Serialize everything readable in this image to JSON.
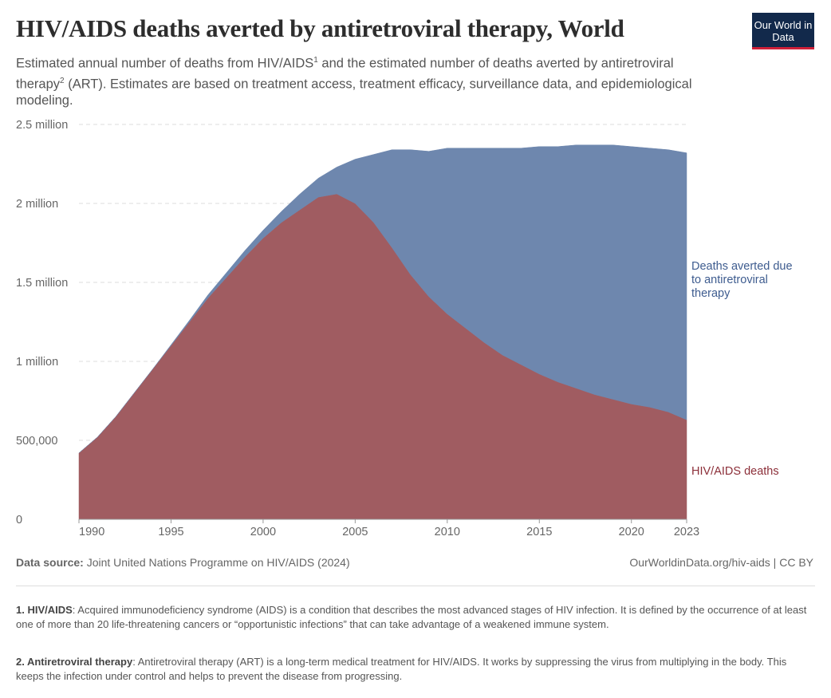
{
  "header": {
    "title": "HIV/AIDS deaths averted by antiretroviral therapy, World",
    "subtitle_part1": "Estimated annual number of deaths from HIV/AIDS",
    "subtitle_sup1": "1",
    "subtitle_part2": " and the estimated number of deaths averted by antiretroviral therapy",
    "subtitle_sup2": "2",
    "subtitle_part3": " (ART). Estimates are based on treatment access, treatment efficacy, surveillance data, and epidemiological modeling.",
    "logo": "Our World in Data"
  },
  "chart_data": {
    "type": "area",
    "stacked": true,
    "title": "HIV/AIDS deaths averted by antiretroviral therapy, World",
    "x": [
      1990,
      1991,
      1992,
      1993,
      1994,
      1995,
      1996,
      1997,
      1998,
      1999,
      2000,
      2001,
      2002,
      2003,
      2004,
      2005,
      2006,
      2007,
      2008,
      2009,
      2010,
      2011,
      2012,
      2013,
      2014,
      2015,
      2016,
      2017,
      2018,
      2019,
      2020,
      2021,
      2022,
      2023
    ],
    "series": [
      {
        "name": "HIV/AIDS deaths",
        "color": "#a05c61",
        "label_color": "#8c2f39",
        "values": [
          420000,
          520000,
          650000,
          800000,
          950000,
          1100000,
          1250000,
          1400000,
          1530000,
          1660000,
          1780000,
          1880000,
          1960000,
          2040000,
          2060000,
          2000000,
          1880000,
          1720000,
          1550000,
          1410000,
          1300000,
          1210000,
          1120000,
          1040000,
          980000,
          920000,
          870000,
          830000,
          790000,
          760000,
          730000,
          710000,
          680000,
          630000
        ]
      },
      {
        "name": "Deaths averted due to antiretroviral therapy",
        "color": "#6e87ae",
        "label_color": "#3e5c8f",
        "values": [
          0,
          0,
          0,
          0,
          0,
          5000,
          10000,
          20000,
          30000,
          40000,
          50000,
          70000,
          100000,
          120000,
          170000,
          280000,
          430000,
          620000,
          790000,
          920000,
          1050000,
          1140000,
          1230000,
          1310000,
          1370000,
          1440000,
          1490000,
          1540000,
          1580000,
          1610000,
          1630000,
          1640000,
          1660000,
          1690000
        ]
      }
    ],
    "y_ticks": [
      0,
      500000,
      1000000,
      1500000,
      2000000,
      2500000
    ],
    "y_tick_labels": [
      "0",
      "500,000",
      "1 million",
      "1.5 million",
      "2 million",
      "2.5 million"
    ],
    "x_ticks": [
      1990,
      1995,
      2000,
      2005,
      2010,
      2015,
      2020,
      2023
    ],
    "ylim": [
      0,
      2500000
    ],
    "xlim": [
      1990,
      2023
    ],
    "grid": "horizontal dashed",
    "legend": "inline right"
  },
  "footer": {
    "source_label": "Data source:",
    "source": " Joint United Nations Programme on HIV/AIDS (2024)",
    "credit": "OurWorldinData.org/hiv-aids | CC BY"
  },
  "notes": [
    {
      "term": "1. HIV/AIDS",
      "text": ": Acquired immunodeficiency syndrome (AIDS) is a condition that describes the most advanced stages of HIV infection. It is defined by the occurrence of at least one of more than 20 life-threatening cancers or “opportunistic infections” that can take advantage of a weakened immune system."
    },
    {
      "term": "2. Antiretroviral therapy",
      "text": ": Antiretroviral therapy (ART) is a long-term medical treatment for HIV/AIDS. It works by suppressing the virus from multiplying in the body. This keeps the infection under control and helps to prevent the disease from progressing."
    }
  ]
}
